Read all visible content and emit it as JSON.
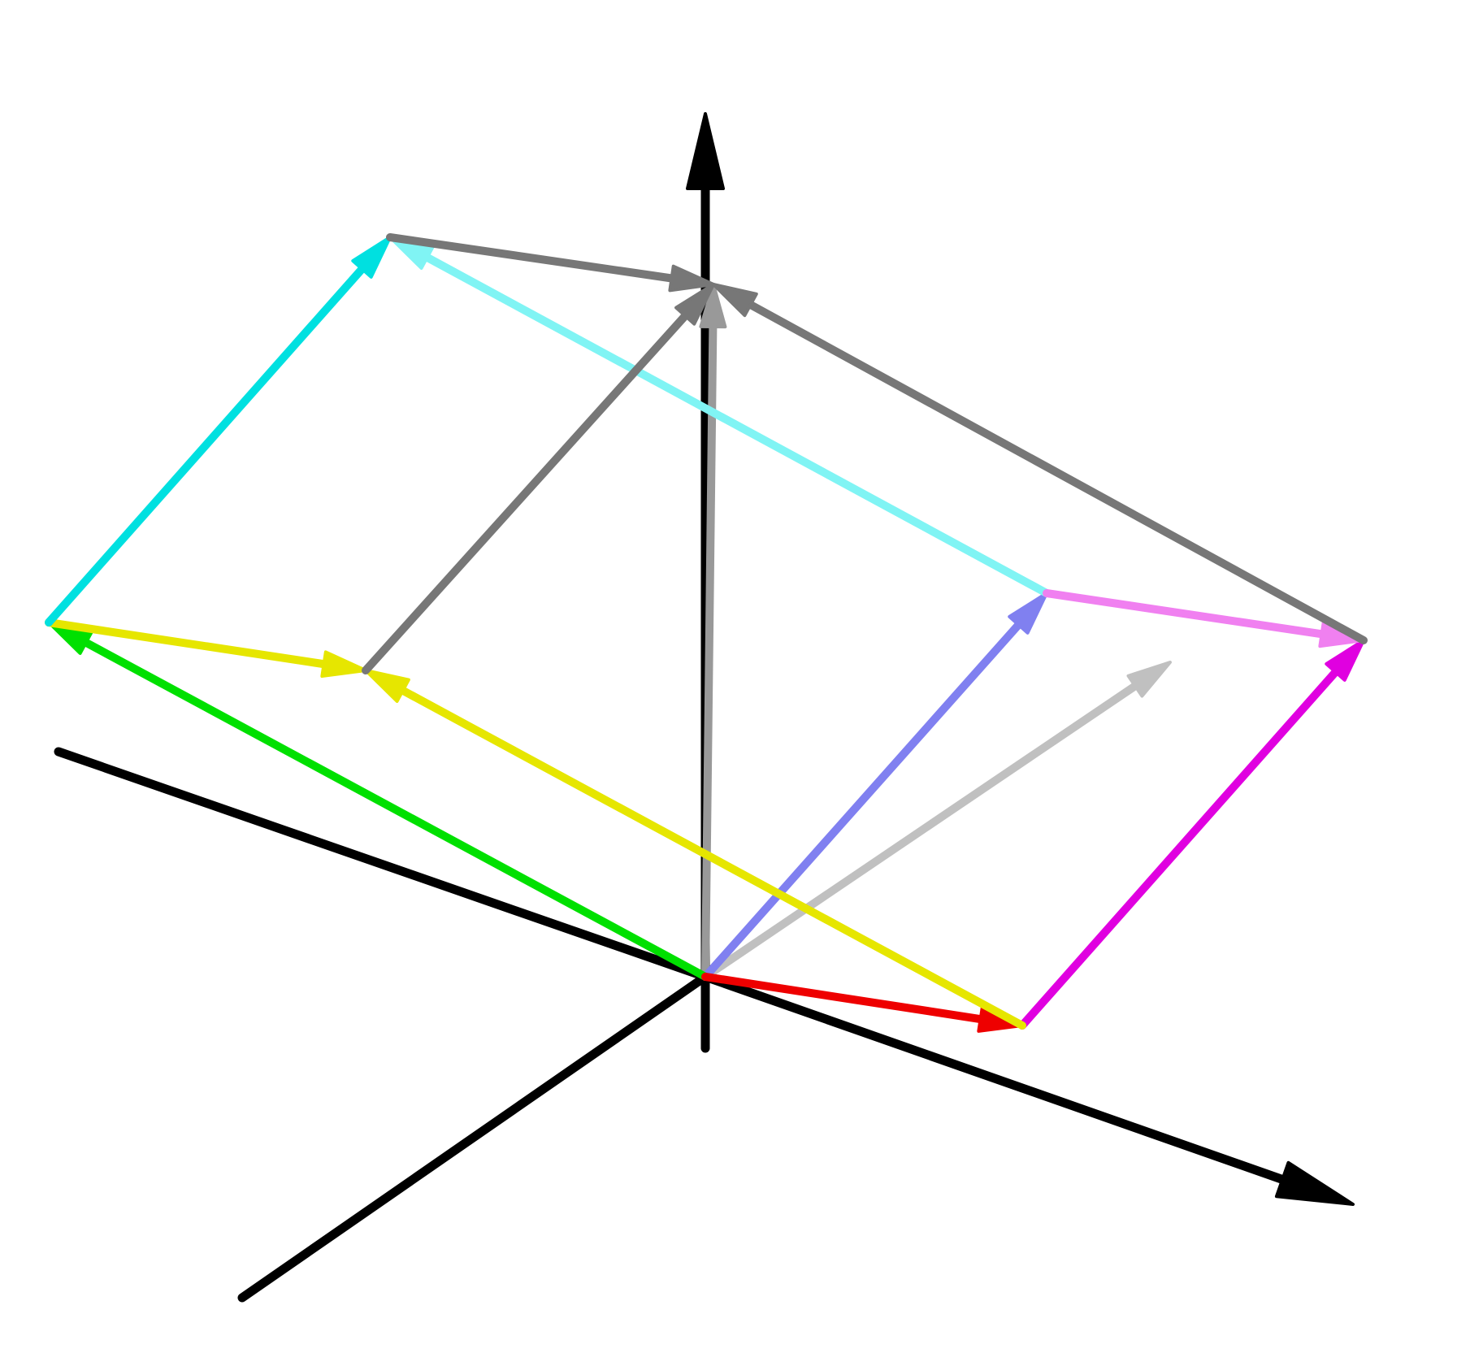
{
  "colors": {
    "axis": "#000000",
    "red": "#ee0000",
    "green": "#00e000",
    "blue": "#8080f0",
    "light_gray": "#c0c0c0",
    "gray": "#777777",
    "mid_gray": "#999999",
    "yellow": "#e6e600",
    "cyan": "#00e0e0",
    "light_cyan": "#80f4f4",
    "magenta": "#e000e0",
    "light_magenta": "#f080f0"
  },
  "axes": [
    {
      "name": "axis-x-negative",
      "from": "O",
      "to": "XN",
      "arrow": false
    },
    {
      "name": "axis-x-positive",
      "from": "O",
      "to": "XP",
      "arrow": true
    },
    {
      "name": "axis-y-negative",
      "from": "O",
      "to": "YN",
      "arrow": false
    },
    {
      "name": "axis-vertical",
      "from": "ZN",
      "to": "ZP",
      "arrow": true
    }
  ],
  "vectors": [
    {
      "name": "vector-gray-vertical",
      "from": "O",
      "to": "TOP",
      "color": "mid_gray",
      "width": 10
    },
    {
      "name": "vector-light-gray",
      "from": "O",
      "to": "LG",
      "color": "light_gray",
      "width": 10
    },
    {
      "name": "vector-blue",
      "from": "O",
      "to": "RC",
      "color": "blue",
      "width": 10
    },
    {
      "name": "vector-green",
      "from": "O",
      "to": "L",
      "color": "green",
      "width": 10
    },
    {
      "name": "vector-red",
      "from": "O",
      "to": "R",
      "color": "red",
      "width": 10
    },
    {
      "name": "vector-magenta",
      "from": "R",
      "to": "RR",
      "color": "magenta",
      "width": 10
    },
    {
      "name": "vector-yellow-long",
      "from": "R",
      "to": "M",
      "color": "yellow",
      "width": 10
    },
    {
      "name": "vector-yellow-short",
      "from": "L",
      "to": "M",
      "color": "yellow",
      "width": 10
    },
    {
      "name": "vector-cyan",
      "from": "L",
      "to": "LT",
      "color": "cyan",
      "width": 10
    },
    {
      "name": "vector-light-cyan",
      "from": "RC",
      "to": "LT",
      "color": "light_cyan",
      "width": 10
    },
    {
      "name": "vector-light-magenta",
      "from": "RC",
      "to": "RR",
      "color": "light_magenta",
      "width": 10
    },
    {
      "name": "vector-gray-from-middle",
      "from": "M",
      "to": "TOP",
      "color": "gray",
      "width": 10
    },
    {
      "name": "vector-gray-from-left-top",
      "from": "LT",
      "to": "TOP",
      "color": "gray",
      "width": 10
    },
    {
      "name": "vector-gray-from-right",
      "from": "RR",
      "to": "TOP",
      "color": "gray",
      "width": 10
    }
  ]
}
